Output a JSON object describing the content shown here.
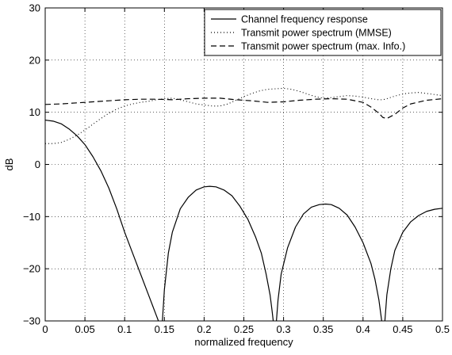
{
  "chart_data": {
    "type": "line",
    "xlabel": "normalized frequency",
    "ylabel": "dB",
    "xlim": [
      0,
      0.5
    ],
    "ylim": [
      -30,
      30
    ],
    "x_ticks": [
      "0",
      "0.05",
      "0.1",
      "0.15",
      "0.2",
      "0.25",
      "0.3",
      "0.35",
      "0.4",
      "0.45",
      "0.5"
    ],
    "y_ticks": [
      "−30",
      "−20",
      "−10",
      "0",
      "10",
      "20",
      "30"
    ],
    "grid": true,
    "legend_position": "top-right",
    "series": [
      {
        "name": "Channel frequency response",
        "style": "solid",
        "color": "#000000",
        "points": [
          [
            0,
            8.5
          ],
          [
            0.01,
            8.3
          ],
          [
            0.02,
            7.8
          ],
          [
            0.03,
            6.8
          ],
          [
            0.04,
            5.5
          ],
          [
            0.05,
            3.8
          ],
          [
            0.06,
            1.5
          ],
          [
            0.07,
            -1.2
          ],
          [
            0.08,
            -4.5
          ],
          [
            0.09,
            -8.5
          ],
          [
            0.1,
            -13
          ],
          [
            0.11,
            -17
          ],
          [
            0.12,
            -21
          ],
          [
            0.13,
            -25
          ],
          [
            0.135,
            -27
          ],
          [
            0.14,
            -29
          ],
          [
            0.1425,
            -30
          ],
          null,
          [
            0.1475,
            -30
          ],
          [
            0.15,
            -24
          ],
          [
            0.155,
            -17
          ],
          [
            0.16,
            -13
          ],
          [
            0.17,
            -8.5
          ],
          [
            0.18,
            -6.3
          ],
          [
            0.19,
            -4.9
          ],
          [
            0.2,
            -4.3
          ],
          [
            0.207,
            -4.2
          ],
          [
            0.215,
            -4.3
          ],
          [
            0.225,
            -4.9
          ],
          [
            0.235,
            -6
          ],
          [
            0.245,
            -8
          ],
          [
            0.255,
            -10.5
          ],
          [
            0.265,
            -14
          ],
          [
            0.272,
            -17
          ],
          [
            0.278,
            -21
          ],
          [
            0.283,
            -25
          ],
          [
            0.2855,
            -28
          ],
          [
            0.287,
            -30
          ],
          null,
          [
            0.291,
            -30
          ],
          [
            0.293,
            -26
          ],
          [
            0.297,
            -21
          ],
          [
            0.305,
            -16
          ],
          [
            0.315,
            -12
          ],
          [
            0.325,
            -9.5
          ],
          [
            0.335,
            -8.2
          ],
          [
            0.345,
            -7.7
          ],
          [
            0.353,
            -7.6
          ],
          [
            0.36,
            -7.7
          ],
          [
            0.37,
            -8.4
          ],
          [
            0.38,
            -9.7
          ],
          [
            0.39,
            -12
          ],
          [
            0.4,
            -15
          ],
          [
            0.41,
            -19
          ],
          [
            0.415,
            -22
          ],
          [
            0.42,
            -26
          ],
          [
            0.4235,
            -30
          ],
          null,
          [
            0.4275,
            -30
          ],
          [
            0.43,
            -25
          ],
          [
            0.435,
            -20
          ],
          [
            0.44,
            -16.5
          ],
          [
            0.45,
            -13
          ],
          [
            0.46,
            -11
          ],
          [
            0.47,
            -9.8
          ],
          [
            0.48,
            -9
          ],
          [
            0.49,
            -8.6
          ],
          [
            0.5,
            -8.4
          ]
        ]
      },
      {
        "name": "Transmit power spectrum (MMSE)",
        "style": "dotted",
        "color": "#000000",
        "points": [
          [
            0,
            4
          ],
          [
            0.01,
            4
          ],
          [
            0.02,
            4.2
          ],
          [
            0.03,
            4.8
          ],
          [
            0.04,
            5.6
          ],
          [
            0.05,
            6.6
          ],
          [
            0.06,
            7.7
          ],
          [
            0.07,
            8.8
          ],
          [
            0.08,
            9.8
          ],
          [
            0.09,
            10.6
          ],
          [
            0.1,
            11.2
          ],
          [
            0.11,
            11.6
          ],
          [
            0.12,
            11.9
          ],
          [
            0.13,
            12.1
          ],
          [
            0.14,
            12.4
          ],
          [
            0.15,
            12.6
          ],
          [
            0.16,
            12.7
          ],
          [
            0.17,
            12.4
          ],
          [
            0.18,
            12
          ],
          [
            0.19,
            11.6
          ],
          [
            0.2,
            11.4
          ],
          [
            0.21,
            11.2
          ],
          [
            0.22,
            11.2
          ],
          [
            0.23,
            11.6
          ],
          [
            0.24,
            12.3
          ],
          [
            0.25,
            13
          ],
          [
            0.26,
            13.6
          ],
          [
            0.27,
            14.1
          ],
          [
            0.28,
            14.4
          ],
          [
            0.29,
            14.5
          ],
          [
            0.3,
            14.6
          ],
          [
            0.31,
            14.4
          ],
          [
            0.32,
            14
          ],
          [
            0.33,
            13.5
          ],
          [
            0.34,
            13
          ],
          [
            0.35,
            12.7
          ],
          [
            0.36,
            12.8
          ],
          [
            0.37,
            13
          ],
          [
            0.38,
            13.2
          ],
          [
            0.39,
            13.1
          ],
          [
            0.4,
            12.9
          ],
          [
            0.41,
            12.6
          ],
          [
            0.42,
            12.4
          ],
          [
            0.425,
            12.4
          ],
          [
            0.43,
            12.6
          ],
          [
            0.44,
            13.1
          ],
          [
            0.45,
            13.5
          ],
          [
            0.46,
            13.7
          ],
          [
            0.47,
            13.8
          ],
          [
            0.48,
            13.6
          ],
          [
            0.49,
            13.4
          ],
          [
            0.5,
            13.2
          ]
        ]
      },
      {
        "name": "Transmit power spectrum (max. Info.)",
        "style": "dashed",
        "color": "#000000",
        "points": [
          [
            0,
            11.5
          ],
          [
            0.02,
            11.6
          ],
          [
            0.04,
            11.8
          ],
          [
            0.06,
            12
          ],
          [
            0.08,
            12.2
          ],
          [
            0.1,
            12.4
          ],
          [
            0.12,
            12.5
          ],
          [
            0.14,
            12.5
          ],
          [
            0.16,
            12.4
          ],
          [
            0.18,
            12.6
          ],
          [
            0.2,
            12.7
          ],
          [
            0.22,
            12.7
          ],
          [
            0.24,
            12.4
          ],
          [
            0.26,
            12.2
          ],
          [
            0.28,
            11.9
          ],
          [
            0.3,
            12
          ],
          [
            0.32,
            12.3
          ],
          [
            0.34,
            12.5
          ],
          [
            0.36,
            12.6
          ],
          [
            0.38,
            12.5
          ],
          [
            0.4,
            11.9
          ],
          [
            0.41,
            11
          ],
          [
            0.42,
            9.8
          ],
          [
            0.425,
            9
          ],
          [
            0.43,
            8.8
          ],
          [
            0.44,
            9.6
          ],
          [
            0.45,
            10.8
          ],
          [
            0.46,
            11.6
          ],
          [
            0.48,
            12.3
          ],
          [
            0.5,
            12.6
          ]
        ]
      }
    ]
  }
}
